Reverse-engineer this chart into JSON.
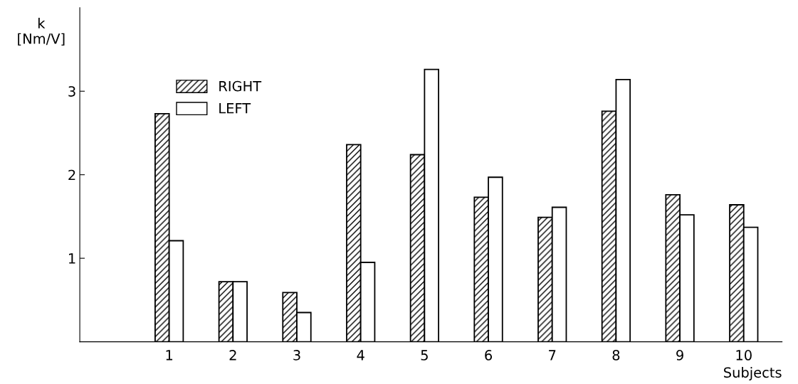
{
  "chart_data": {
    "type": "bar",
    "xlabel": "Subjects",
    "ylabel": "k\n[Nm/V]",
    "categories": [
      "1",
      "2",
      "3",
      "4",
      "5",
      "6",
      "7",
      "8",
      "9",
      "10"
    ],
    "series": [
      {
        "name": "RIGHT",
        "color": "#000000",
        "values": [
          2.73,
          0.72,
          0.59,
          2.36,
          2.24,
          1.73,
          1.49,
          2.76,
          1.76,
          1.64
        ]
      },
      {
        "name": "LEFT",
        "color": "#ffffff",
        "values": [
          1.21,
          0.72,
          0.35,
          0.95,
          3.26,
          1.97,
          1.61,
          3.14,
          1.52,
          1.37
        ]
      }
    ],
    "ylim": [
      0,
      4
    ],
    "yticks": [
      1,
      2,
      3
    ],
    "grid": false,
    "legend": "top left"
  }
}
